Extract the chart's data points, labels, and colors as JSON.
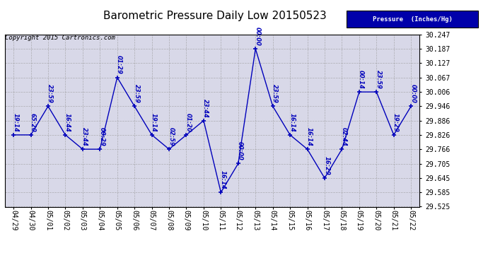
{
  "title": "Barometric Pressure Daily Low 20150523",
  "copyright": "Copyright 2015 Cartronics.com",
  "legend_label": "Pressure  (Inches/Hg)",
  "x_labels": [
    "04/29",
    "04/30",
    "05/01",
    "05/02",
    "05/03",
    "05/04",
    "05/05",
    "05/06",
    "05/07",
    "05/08",
    "05/09",
    "05/10",
    "05/11",
    "05/12",
    "05/13",
    "05/14",
    "05/15",
    "05/16",
    "05/17",
    "05/18",
    "05/19",
    "05/20",
    "05/21",
    "05/22"
  ],
  "y_values": [
    29.826,
    29.826,
    29.946,
    29.826,
    29.766,
    29.766,
    30.067,
    29.946,
    29.826,
    29.766,
    29.826,
    29.886,
    29.585,
    29.706,
    30.187,
    29.946,
    29.826,
    29.766,
    29.645,
    29.766,
    30.006,
    30.006,
    29.826,
    29.946
  ],
  "point_labels": [
    "19:14",
    "65:20",
    "23:59",
    "16:44",
    "23:44",
    "00:29",
    "01:29",
    "23:59",
    "19:14",
    "02:59",
    "01:20",
    "23:44",
    "16:14",
    "00:00",
    "00:00",
    "23:59",
    "16:14",
    "16:14",
    "16:29",
    "02:44",
    "00:14",
    "23:59",
    "19:29",
    "00:00"
  ],
  "ylim_min": 29.525,
  "ylim_max": 30.247,
  "yticks": [
    29.525,
    29.585,
    29.645,
    29.705,
    29.766,
    29.826,
    29.886,
    29.946,
    30.006,
    30.067,
    30.127,
    30.187,
    30.247
  ],
  "line_color": "#0000BB",
  "grid_color": "#999999",
  "bg_color": "#FFFFFF",
  "plot_bg_color": "#D8D8E8",
  "title_fontsize": 11,
  "label_fontsize": 7,
  "annot_fontsize": 6,
  "legend_bg_color": "#0000AA",
  "legend_text_color": "#FFFFFF"
}
